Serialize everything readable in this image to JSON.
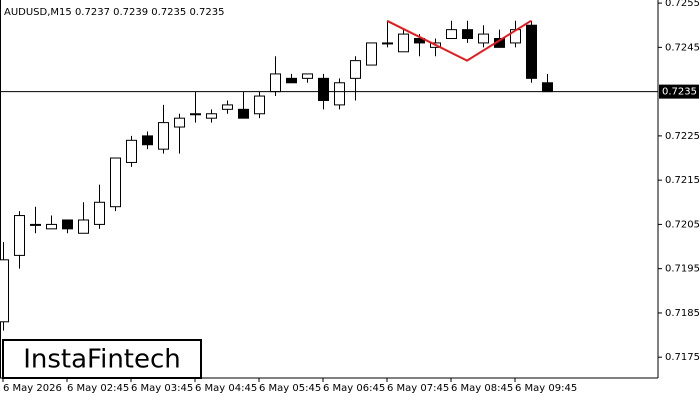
{
  "chart_data": {
    "type": "candlestick",
    "title": "AUDUSD,M15  0.7237 0.7239 0.7235 0.7235",
    "watermark": "InstaFintech",
    "categories": [
      "6 May 2026",
      null,
      null,
      null,
      "6 May 02:45",
      null,
      null,
      null,
      "6 May 03:45",
      null,
      null,
      null,
      "6 May 04:45",
      null,
      null,
      null,
      "6 May 05:45",
      null,
      null,
      null,
      "6 May 06:45",
      null,
      null,
      null,
      "6 May 07:45",
      null,
      null,
      null,
      "6 May 08:45",
      null,
      null,
      null,
      "6 May 09:45",
      null,
      null
    ],
    "open": [
      0.7183,
      0.7198,
      0.7205,
      0.7204,
      0.7206,
      0.7203,
      0.7205,
      0.7209,
      0.7219,
      0.7225,
      0.7222,
      0.7227,
      0.723,
      0.7229,
      0.7231,
      0.7231,
      0.723,
      0.7235,
      0.7238,
      0.7238,
      0.7238,
      0.7232,
      0.7238,
      0.7241,
      0.7246,
      0.7244,
      0.7247,
      0.7245,
      0.7247,
      0.7249,
      0.7246,
      0.7247,
      0.7246,
      0.725,
      0.7237
    ],
    "high": [
      0.7201,
      0.7208,
      0.7209,
      0.7207,
      0.7206,
      0.721,
      0.7214,
      0.722,
      0.7225,
      0.7226,
      0.7232,
      0.723,
      0.7235,
      0.7231,
      0.7233,
      0.7235,
      0.7235,
      0.7243,
      0.7239,
      0.7239,
      0.7239,
      0.7238,
      0.7243,
      0.7246,
      0.7251,
      0.7249,
      0.7248,
      0.7247,
      0.7251,
      0.7251,
      0.725,
      0.7249,
      0.7251,
      0.7251,
      0.7239
    ],
    "low": [
      0.7181,
      0.7195,
      0.7203,
      0.7204,
      0.7203,
      0.7203,
      0.7204,
      0.7208,
      0.7218,
      0.7222,
      0.7221,
      0.7221,
      0.7228,
      0.7228,
      0.723,
      0.7229,
      0.7229,
      0.7234,
      0.7237,
      0.7237,
      0.7231,
      0.7231,
      0.7233,
      0.7241,
      0.7245,
      0.7244,
      0.7243,
      0.7243,
      0.7247,
      0.7246,
      0.7245,
      0.7245,
      0.7245,
      0.7237,
      0.7235
    ],
    "close": [
      0.7197,
      0.7207,
      0.7205,
      0.7205,
      0.7204,
      0.7206,
      0.721,
      0.722,
      0.7224,
      0.7223,
      0.7228,
      0.7229,
      0.723,
      0.723,
      0.7232,
      0.7229,
      0.7234,
      0.7239,
      0.7237,
      0.7239,
      0.7233,
      0.7237,
      0.7242,
      0.7246,
      0.7246,
      0.7248,
      0.7246,
      0.7246,
      0.7249,
      0.7247,
      0.7248,
      0.7245,
      0.7249,
      0.7238,
      0.7235
    ],
    "up_color": "#ffffff",
    "down_color": "#000000",
    "pattern": {
      "color": "#e8191c",
      "x": [
        24,
        29,
        33
      ],
      "values": [
        0.7251,
        0.7242,
        0.7251
      ]
    },
    "current_price": 0.7235,
    "ylim": [
      0.71703,
      0.72557
    ],
    "yticks": [
      0.7175,
      0.7185,
      0.7195,
      0.7205,
      0.7215,
      0.7225,
      0.7245,
      0.7255
    ]
  }
}
